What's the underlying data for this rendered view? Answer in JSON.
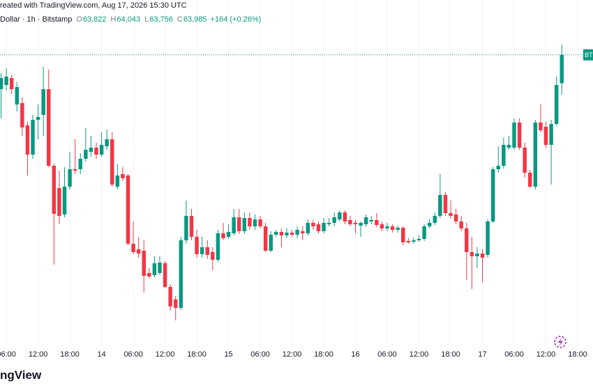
{
  "header": {
    "source": "reated with TradingView.com, Aug 17, 2026 15:30 UTC",
    "symbol": "Dollar · 1h · Bitstamp",
    "ohlc": [
      {
        "key": "O",
        "value": "63,822"
      },
      {
        "key": "H",
        "value": "64,043"
      },
      {
        "key": "L",
        "value": "63,756"
      },
      {
        "key": "C",
        "value": "63,985"
      }
    ],
    "change": "+164 (+0.26%)"
  },
  "footer": {
    "logo": "ngView"
  },
  "chart_data": {
    "type": "candlestick",
    "x": [
      0,
      1,
      2,
      3,
      4,
      5,
      6,
      7,
      8,
      9,
      10,
      11,
      12,
      13,
      14,
      15,
      16,
      17,
      18,
      19,
      20,
      21,
      22,
      23,
      24,
      25,
      26,
      27,
      28,
      29,
      30,
      31,
      32,
      33,
      34,
      35,
      36,
      37,
      38,
      39,
      40,
      41,
      42,
      43,
      44,
      45,
      46,
      47,
      48,
      49,
      50,
      51,
      52,
      53,
      54,
      55,
      56,
      57,
      58,
      59,
      60,
      61,
      62,
      63,
      64,
      65,
      66,
      67,
      68,
      69,
      70,
      71,
      72,
      73,
      74,
      75,
      76,
      77,
      78,
      79,
      80,
      81,
      82,
      83,
      84,
      85,
      86,
      87,
      88,
      89,
      90,
      91,
      92,
      93,
      94,
      95,
      96,
      97,
      98,
      99,
      100,
      101,
      102,
      103,
      104,
      105,
      106
    ],
    "open": [
      63788,
      63812,
      63852,
      63700,
      63708,
      63580,
      63412,
      63612,
      63640,
      63788,
      63348,
      63220,
      63068,
      63228,
      63328,
      63328,
      63388,
      63428,
      63452,
      63412,
      63460,
      63500,
      63228,
      63300,
      63292,
      62900,
      62868,
      62860,
      62732,
      62720,
      62732,
      62788,
      62652,
      62580,
      62532,
      62920,
      63060,
      62940,
      62840,
      62880,
      62852,
      62808,
      62960,
      62940,
      62960,
      63052,
      62972,
      63048,
      63000,
      63040,
      63000,
      62860,
      62952,
      62968,
      62948,
      62964,
      62952,
      62972,
      62960,
      63020,
      63012,
      62972,
      63012,
      63020,
      63040,
      63080,
      63036,
      63020,
      63004,
      63012,
      63028,
      63036,
      63012,
      62988,
      63000,
      62980,
      62992,
      62916,
      62912,
      62920,
      62928,
      63000,
      63020,
      63060,
      63180,
      63076,
      63068,
      63028,
      62988,
      62852,
      62828,
      62844,
      62836,
      63028,
      63328,
      63348,
      63452,
      63452,
      63596,
      63452,
      63308,
      63228,
      63596,
      63572,
      63468,
      63588,
      63822
    ],
    "high": [
      63880,
      63908,
      63868,
      63828,
      63740,
      63600,
      63640,
      63700,
      63916,
      63900,
      63360,
      63320,
      63340,
      63428,
      63500,
      63420,
      63564,
      63520,
      63480,
      63540,
      63556,
      63540,
      63360,
      63340,
      63300,
      63028,
      62940,
      62920,
      62760,
      62828,
      62828,
      62800,
      62668,
      62600,
      62940,
      63148,
      63100,
      62980,
      62940,
      62920,
      62880,
      62980,
      63020,
      63012,
      63100,
      63100,
      63080,
      63080,
      63068,
      63060,
      63020,
      62972,
      62980,
      62988,
      62988,
      62980,
      63000,
      63000,
      63040,
      63036,
      63028,
      63048,
      63048,
      63080,
      63092,
      63092,
      63060,
      63036,
      63028,
      63068,
      63060,
      63076,
      63028,
      63020,
      63012,
      63004,
      63000,
      62932,
      62936,
      62948,
      63012,
      63040,
      63080,
      63300,
      63196,
      63148,
      63100,
      63060,
      63020,
      62940,
      62880,
      62868,
      63040,
      63340,
      63460,
      63508,
      63520,
      63620,
      63620,
      63480,
      63324,
      63612,
      63700,
      63600,
      63612,
      63860,
      64043
    ],
    "low": [
      63620,
      63780,
      63760,
      63660,
      63520,
      63292,
      63388,
      63500,
      63520,
      63340,
      62780,
      63012,
      63052,
      63212,
      63300,
      63300,
      63372,
      63400,
      63388,
      63400,
      63440,
      63228,
      63212,
      63260,
      62892,
      62840,
      62820,
      62620,
      62700,
      62708,
      62720,
      62644,
      62516,
      62460,
      62520,
      62900,
      62920,
      62820,
      62820,
      62812,
      62748,
      62796,
      62920,
      62928,
      62948,
      62956,
      62956,
      62980,
      62980,
      62988,
      62852,
      62852,
      62940,
      62880,
      62932,
      62940,
      62932,
      62920,
      62948,
      62980,
      62960,
      62960,
      63000,
      63000,
      63028,
      63012,
      63000,
      62960,
      62940,
      62996,
      63012,
      62996,
      62972,
      62972,
      62964,
      62964,
      62892,
      62900,
      62900,
      62912,
      62916,
      62988,
      63008,
      63048,
      63060,
      63044,
      63012,
      62972,
      62692,
      62640,
      62760,
      62680,
      62820,
      63020,
      63308,
      63332,
      63440,
      63440,
      63440,
      63280,
      63220,
      63212,
      63540,
      63452,
      63240,
      63580,
      63756
    ],
    "close": [
      63852,
      63860,
      63788,
      63800,
      63568,
      63412,
      63612,
      63628,
      63788,
      63348,
      63072,
      63060,
      63228,
      63328,
      63320,
      63388,
      63440,
      63452,
      63412,
      63468,
      63500,
      63240,
      63292,
      63276,
      62900,
      62852,
      62844,
      62716,
      62712,
      62788,
      62792,
      62652,
      62540,
      62532,
      62920,
      63060,
      62940,
      62840,
      62880,
      62836,
      62808,
      62960,
      62932,
      62968,
      63052,
      62972,
      63048,
      63000,
      63040,
      63000,
      62860,
      62952,
      62968,
      62948,
      62964,
      62952,
      62980,
      62960,
      63020,
      63000,
      62972,
      63020,
      63020,
      63052,
      63080,
      63028,
      63012,
      63012,
      63020,
      63052,
      63036,
      63008,
      62988,
      63000,
      62980,
      62992,
      62908,
      62908,
      62920,
      62928,
      63000,
      63020,
      63060,
      63180,
      63076,
      63060,
      63028,
      62988,
      62852,
      62828,
      62844,
      62820,
      63028,
      63328,
      63348,
      63468,
      63468,
      63596,
      63452,
      63308,
      63228,
      63596,
      63552,
      63468,
      63588,
      63812,
      63985
    ],
    "xlim": [
      -0.2,
      111.9
    ],
    "xticks": [
      {
        "value": 1,
        "label": "06:00"
      },
      {
        "value": 7,
        "label": "12:00"
      },
      {
        "value": 13,
        "label": "18:00"
      },
      {
        "value": 19,
        "label": "14"
      },
      {
        "value": 25,
        "label": "06:00"
      },
      {
        "value": 31,
        "label": "12:00"
      },
      {
        "value": 37,
        "label": "18:00"
      },
      {
        "value": 43,
        "label": "15"
      },
      {
        "value": 49,
        "label": "06:00"
      },
      {
        "value": 55,
        "label": "12:00"
      },
      {
        "value": 61,
        "label": "18:00"
      },
      {
        "value": 67,
        "label": "16"
      },
      {
        "value": 73,
        "label": "06:00"
      },
      {
        "value": 79,
        "label": "12:00"
      },
      {
        "value": 85,
        "label": "18:00"
      },
      {
        "value": 91,
        "label": "17"
      },
      {
        "value": 97,
        "label": "06:00"
      },
      {
        "value": 103,
        "label": "12:00"
      },
      {
        "value": 109,
        "label": "18:00"
      }
    ],
    "ylim": [
      62320,
      64300
    ],
    "up_color": "#089981",
    "down_color": "#f23645",
    "grid": true,
    "last_price_line": true,
    "price_tag": "BT"
  }
}
